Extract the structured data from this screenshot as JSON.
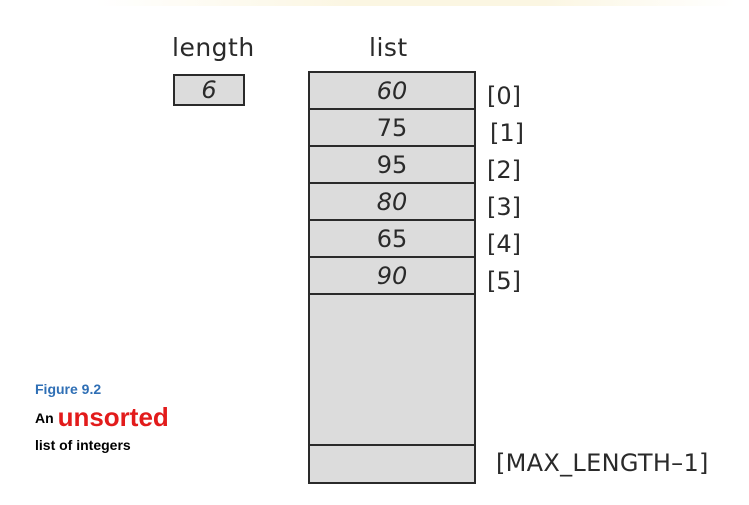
{
  "diagram": {
    "length_header": "length",
    "length_value": "6",
    "list_header": "list",
    "cells": [
      {
        "value": "60",
        "index": "[0]"
      },
      {
        "value": "75",
        "index": "[1]"
      },
      {
        "value": "95",
        "index": "[2]"
      },
      {
        "value": "80",
        "index": "[3]"
      },
      {
        "value": "65",
        "index": "[4]"
      },
      {
        "value": "90",
        "index": "[5]"
      }
    ],
    "last_index": "[MAX_LENGTH–1]"
  },
  "caption": {
    "figure_label": "Figure 9.2",
    "line1_prefix": "An",
    "line1_highlight": "unsorted",
    "line2": "list of integers"
  },
  "colors": {
    "cell_fill": "#dcdcdc",
    "figure_label": "#2f6fb5",
    "highlight": "#e21b1b"
  }
}
